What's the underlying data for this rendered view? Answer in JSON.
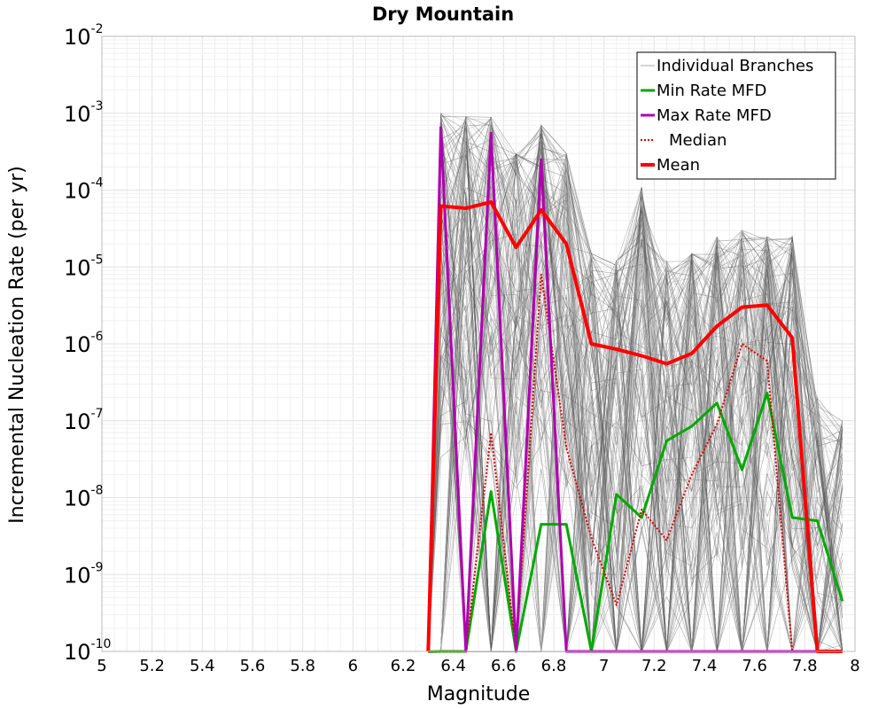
{
  "chart_data": {
    "type": "line",
    "title": "Dry Mountain",
    "xlabel": "Magnitude",
    "ylabel": "Incremental Nucleation Rate (per yr)",
    "xlim": [
      5,
      8
    ],
    "ylim": [
      1e-10,
      0.01
    ],
    "yscale": "log",
    "grid": true,
    "legend_position": "top-right",
    "x_ticks": [
      "5",
      "5.2",
      "5.4",
      "5.6",
      "5.8",
      "6",
      "6.2",
      "6.4",
      "6.6",
      "6.8",
      "7",
      "7.2",
      "7.4",
      "7.6",
      "7.8",
      "8"
    ],
    "y_ticks": [
      {
        "base": "10",
        "exp": "-2"
      },
      {
        "base": "10",
        "exp": "-3"
      },
      {
        "base": "10",
        "exp": "-4"
      },
      {
        "base": "10",
        "exp": "-5"
      },
      {
        "base": "10",
        "exp": "-6"
      },
      {
        "base": "10",
        "exp": "-7"
      },
      {
        "base": "10",
        "exp": "-8"
      },
      {
        "base": "10",
        "exp": "-9"
      },
      {
        "base": "10",
        "exp": "-10"
      }
    ],
    "x": [
      6.35,
      6.45,
      6.55,
      6.65,
      6.75,
      6.85,
      6.95,
      7.05,
      7.15,
      7.25,
      7.35,
      7.45,
      7.55,
      7.65,
      7.75,
      7.85,
      7.95
    ],
    "series": [
      {
        "name": "Individual Branches",
        "color": "#555555",
        "style": "thin",
        "envelope_upper": [
          0.001,
          0.0009,
          0.0009,
          0.0003,
          0.0007,
          0.0003,
          1.5e-05,
          1.2e-05,
          0.00011,
          1.2e-05,
          1.5e-05,
          2.5e-05,
          3e-05,
          2.5e-05,
          2.5e-05,
          2e-07,
          1e-07
        ]
      },
      {
        "name": "Min Rate MFD",
        "color": "#00aa00",
        "values": [
          1e-10,
          1e-10,
          1.2e-08,
          1e-10,
          4.5e-09,
          4.5e-09,
          1e-10,
          1.1e-08,
          5.5e-09,
          5.5e-08,
          8.5e-08,
          1.7e-07,
          2.3e-08,
          2.3e-07,
          5.5e-09,
          5e-09,
          4.5e-10
        ]
      },
      {
        "name": "Max Rate MFD",
        "color": "#b000b0",
        "values": [
          0.00065,
          1e-10,
          0.00055,
          1e-10,
          0.00025,
          1e-10,
          1e-10,
          1e-10,
          1e-10,
          1e-10,
          1e-10,
          1e-10,
          1e-10,
          1e-10,
          1e-10,
          1e-10,
          1e-10
        ]
      },
      {
        "name": "Median",
        "color": "#e00000",
        "style": "dotted",
        "values": [
          1e-10,
          1e-10,
          7e-08,
          1e-10,
          8e-06,
          4.5e-08,
          3e-09,
          4e-10,
          7e-09,
          2.8e-09,
          2e-08,
          9e-08,
          1e-06,
          6e-07,
          1e-10,
          1e-10,
          1e-10
        ]
      },
      {
        "name": "Mean",
        "color": "#ff0000",
        "style": "thick",
        "values": [
          6.2e-05,
          5.8e-05,
          7e-05,
          1.8e-05,
          5.5e-05,
          2e-05,
          1e-06,
          8.5e-07,
          7e-07,
          5.5e-07,
          7.5e-07,
          1.7e-06,
          3e-06,
          3.2e-06,
          1.2e-06,
          1e-10,
          1e-10
        ]
      }
    ]
  }
}
